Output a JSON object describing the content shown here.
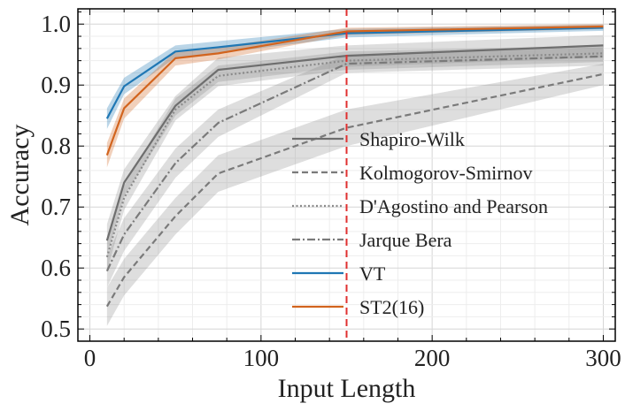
{
  "chart_data": {
    "type": "line",
    "title": "",
    "xlabel": "Input Length",
    "ylabel": "Accuracy",
    "xlim": [
      -7,
      307
    ],
    "ylim": [
      0.48,
      1.025
    ],
    "xticks": [
      0,
      100,
      200,
      300
    ],
    "yticks": [
      0.5,
      0.6,
      0.7,
      0.8,
      0.9,
      1.0
    ],
    "ytick_labels": [
      "0.5",
      "0.6",
      "0.7",
      "0.8",
      "0.9",
      "1.0"
    ],
    "grid": true,
    "legend_position": "center-right",
    "vline": {
      "x": 150,
      "color": "#e03030",
      "style": "dashed"
    },
    "series": [
      {
        "name": "Shapiro-Wilk",
        "color": "#6e6e6e",
        "dash": "solid",
        "x": [
          10,
          20,
          50,
          75,
          150,
          300
        ],
        "y": [
          0.645,
          0.74,
          0.866,
          0.925,
          0.948,
          0.965
        ],
        "lower": [
          0.62,
          0.718,
          0.85,
          0.905,
          0.93,
          0.945
        ],
        "upper": [
          0.672,
          0.762,
          0.882,
          0.945,
          0.965,
          0.982
        ]
      },
      {
        "name": "Kolmogorov-Smirnov",
        "color": "#7a7a7a",
        "dash": "dashed",
        "x": [
          10,
          20,
          50,
          75,
          150,
          300
        ],
        "y": [
          0.537,
          0.585,
          0.685,
          0.755,
          0.83,
          0.918
        ],
        "lower": [
          0.505,
          0.555,
          0.655,
          0.725,
          0.8,
          0.9
        ],
        "upper": [
          0.568,
          0.615,
          0.715,
          0.785,
          0.86,
          0.935
        ]
      },
      {
        "name": "D'Agostino and Pearson",
        "color": "#8a8a8a",
        "dash": "dotted",
        "x": [
          10,
          20,
          50,
          75,
          150,
          300
        ],
        "y": [
          0.618,
          0.715,
          0.86,
          0.915,
          0.94,
          0.952
        ],
        "lower": [
          0.595,
          0.695,
          0.842,
          0.898,
          0.925,
          0.938
        ],
        "upper": [
          0.642,
          0.735,
          0.878,
          0.932,
          0.955,
          0.965
        ]
      },
      {
        "name": "Jarque Bera",
        "color": "#7a7a7a",
        "dash": "dashdot",
        "x": [
          10,
          20,
          50,
          75,
          150,
          300
        ],
        "y": [
          0.595,
          0.655,
          0.772,
          0.838,
          0.935,
          0.947
        ],
        "lower": [
          0.568,
          0.628,
          0.748,
          0.815,
          0.92,
          0.932
        ],
        "upper": [
          0.62,
          0.682,
          0.796,
          0.86,
          0.95,
          0.962
        ]
      },
      {
        "name": "VT",
        "color": "#1f77b4",
        "dash": "solid",
        "x": [
          10,
          20,
          50,
          75,
          150,
          300
        ],
        "y": [
          0.845,
          0.898,
          0.955,
          0.962,
          0.985,
          0.994
        ],
        "lower": [
          0.828,
          0.885,
          0.945,
          0.952,
          0.978,
          0.989
        ],
        "upper": [
          0.862,
          0.912,
          0.965,
          0.972,
          0.992,
          0.999
        ]
      },
      {
        "name": "ST2(16)",
        "color": "#d2641e",
        "dash": "solid",
        "x": [
          10,
          20,
          50,
          75,
          150,
          300
        ],
        "y": [
          0.785,
          0.862,
          0.944,
          0.952,
          0.988,
          0.996
        ],
        "lower": [
          0.765,
          0.845,
          0.932,
          0.942,
          0.982,
          0.992
        ],
        "upper": [
          0.805,
          0.878,
          0.955,
          0.962,
          0.994,
          1.0
        ]
      }
    ]
  }
}
